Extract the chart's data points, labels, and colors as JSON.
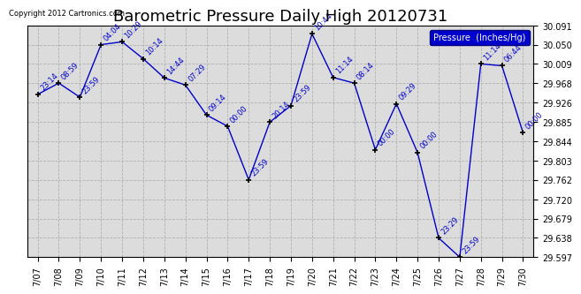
{
  "title": "Barometric Pressure Daily High 20120731",
  "copyright": "Copyright 2012 Cartronics.com",
  "legend_label": "Pressure  (Inches/Hg)",
  "ylim": [
    29.597,
    30.091
  ],
  "yticks": [
    29.597,
    29.638,
    29.679,
    29.72,
    29.762,
    29.803,
    29.844,
    29.885,
    29.926,
    29.968,
    30.009,
    30.05,
    30.091
  ],
  "dates": [
    "7/07",
    "7/08",
    "7/09",
    "7/10",
    "7/11",
    "7/12",
    "7/13",
    "7/14",
    "7/15",
    "7/16",
    "7/17",
    "7/18",
    "7/19",
    "7/20",
    "7/21",
    "7/22",
    "7/23",
    "7/24",
    "7/25",
    "7/26",
    "7/27",
    "7/28",
    "7/29",
    "7/30"
  ],
  "x_indices": [
    0,
    1,
    2,
    3,
    4,
    5,
    6,
    7,
    8,
    9,
    10,
    11,
    12,
    13,
    14,
    15,
    16,
    17,
    18,
    19,
    20,
    21,
    22,
    23
  ],
  "values": [
    29.944,
    29.968,
    29.938,
    30.05,
    30.056,
    30.02,
    29.979,
    29.964,
    29.9,
    29.876,
    29.762,
    29.885,
    29.92,
    30.073,
    29.98,
    29.968,
    29.826,
    29.924,
    29.82,
    29.638,
    29.597,
    30.009,
    30.005,
    29.862
  ],
  "time_labels": [
    "23:14",
    "08:59",
    "23:59",
    "04:04",
    "10:29",
    "10:14",
    "14:44",
    "07:29",
    "09:14",
    "00:00",
    "23:59",
    "20:14",
    "23:59",
    "10:44",
    "11:14",
    "08:14",
    "00:00",
    "09:29",
    "00:00",
    "23:29",
    "23:59",
    "11:14",
    "06:44",
    "00:00"
  ],
  "line_color": "#0000cc",
  "marker_color": "#000000",
  "bg_color": "#ffffff",
  "plot_bg_color": "#dcdcdc",
  "grid_color": "#b0b0b0",
  "title_fontsize": 13,
  "tick_fontsize": 7,
  "annot_fontsize": 6,
  "legend_bg": "#0000cc",
  "legend_text_color": "#ffffff",
  "legend_fontsize": 7,
  "copyright_fontsize": 6
}
